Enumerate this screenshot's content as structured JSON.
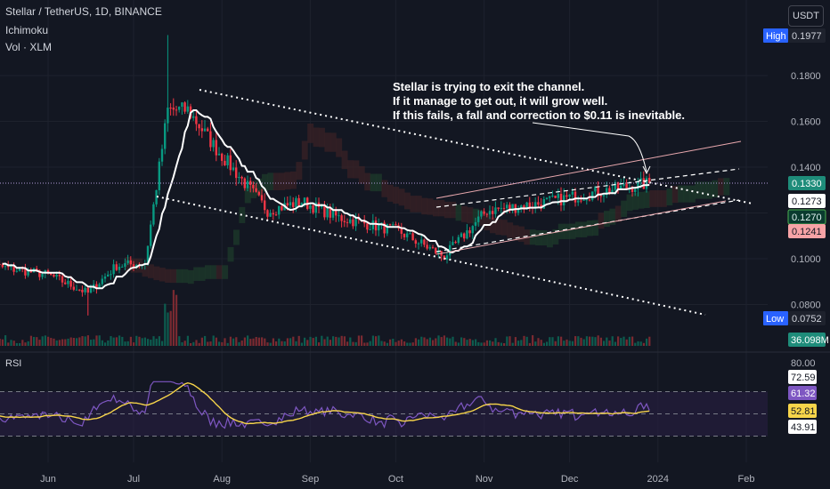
{
  "header": {
    "symbol_line": "Stellar / TetherUS, 1D, BINANCE",
    "indicator_1": "Ichimoku",
    "indicator_2": "Vol · XLM"
  },
  "currency_button": "USDT",
  "annotation": {
    "lines": [
      "Stellar is trying to exit the channel.",
      "If it manage to get out, it will grow well.",
      "If this fails, a fall and correction to $0.11 is inevitable."
    ]
  },
  "rsi_panel": {
    "title": "RSI"
  },
  "colors": {
    "background": "#131722",
    "up": "#089981",
    "down": "#f23645",
    "ma_line": "#ffffff",
    "rsi_line": "#7e57c2",
    "rsi_ma": "#f7d54a",
    "cloud_green": "#1e3b2b",
    "cloud_red": "#3a2226",
    "highlight_cyan": "#00bcd4"
  },
  "chart_data": {
    "type": "candlestick",
    "title": "Stellar / TetherUS, 1D, BINANCE",
    "x_tick_labels": [
      "Jun",
      "Jul",
      "Aug",
      "Sep",
      "Oct",
      "Nov",
      "Dec",
      "2024",
      "Feb"
    ],
    "y_tick_labels": [
      "0.0800",
      "0.1000",
      "0.1200",
      "0.1400",
      "0.1600",
      "0.1800"
    ],
    "y_ticks": [
      0.08,
      0.1,
      0.12,
      0.14,
      0.16,
      0.18
    ],
    "ylim": [
      0.0685,
      0.2025
    ],
    "price_labels": [
      {
        "tag": "High",
        "text": "0.1977",
        "value": 0.1977,
        "style": "high"
      },
      {
        "tag": "",
        "text": "0.1330",
        "value": 0.133,
        "style": "current"
      },
      {
        "tag": "",
        "text": "0.1273",
        "value": 0.1273,
        "style": "white"
      },
      {
        "tag": "",
        "text": "0.1270",
        "value": 0.127,
        "style": "green"
      },
      {
        "tag": "",
        "text": "0.1241",
        "value": 0.1241,
        "style": "red"
      },
      {
        "tag": "Low",
        "text": "0.0752",
        "value": 0.0752,
        "style": "low"
      }
    ],
    "volume_label": "36.098M",
    "key_points": [
      {
        "date": "2023-06-01",
        "close": 0.093
      },
      {
        "date": "2023-06-15",
        "close": 0.085
      },
      {
        "date": "2023-06-25",
        "close": 0.097
      },
      {
        "date": "2023-07-05",
        "close": 0.098
      },
      {
        "date": "2023-07-13",
        "close": 0.165
      },
      {
        "date": "2023-07-20",
        "close": 0.165
      },
      {
        "date": "2023-07-30",
        "close": 0.148
      },
      {
        "date": "2023-08-17",
        "close": 0.121
      },
      {
        "date": "2023-08-29",
        "close": 0.125
      },
      {
        "date": "2023-09-11",
        "close": 0.118
      },
      {
        "date": "2023-10-02",
        "close": 0.112
      },
      {
        "date": "2023-10-18",
        "close": 0.101
      },
      {
        "date": "2023-11-02",
        "close": 0.121
      },
      {
        "date": "2023-11-20",
        "close": 0.124
      },
      {
        "date": "2023-12-10",
        "close": 0.129
      },
      {
        "date": "2023-12-29",
        "close": 0.133
      }
    ],
    "rsi": {
      "title": "RSI",
      "levels": [
        {
          "text": "80.00",
          "value": 80,
          "style": "plain"
        },
        {
          "text": "72.59",
          "value": 72.59,
          "style": "box-light"
        },
        {
          "text": "61.32",
          "value": 61.32,
          "style": "purple"
        },
        {
          "text": "52.81",
          "value": 52.81,
          "style": "yellow"
        },
        {
          "text": "43.91",
          "value": 43.91,
          "style": "box-light"
        }
      ],
      "band": [
        30,
        70
      ]
    }
  }
}
